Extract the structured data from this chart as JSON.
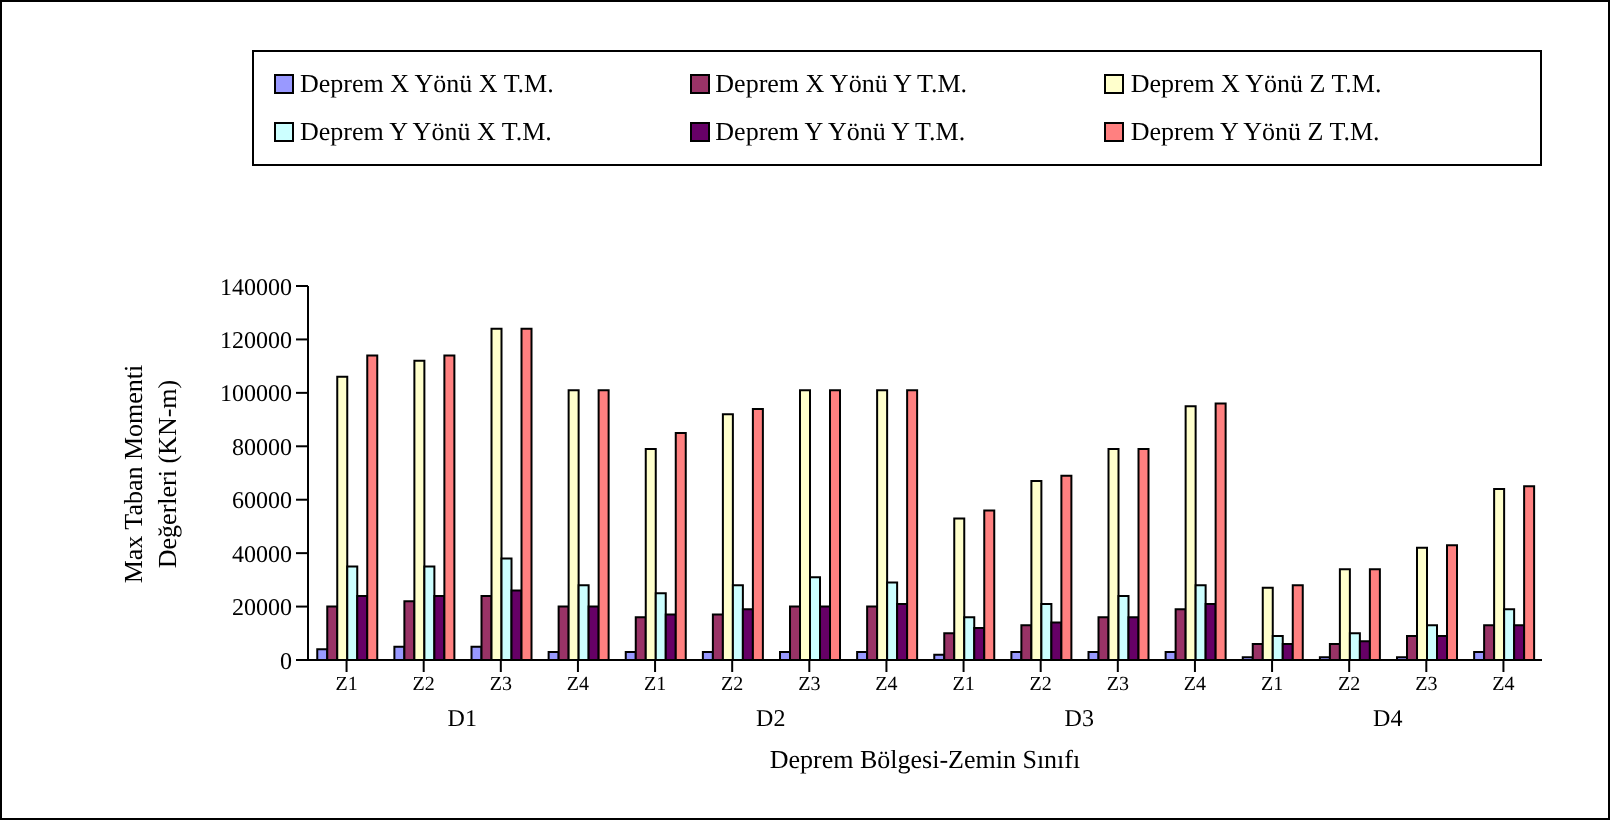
{
  "chart_data": {
    "type": "bar",
    "xlabel": "Deprem Bölgesi-Zemin Sınıfı",
    "ylabel": "Max Taban Momenti Değerleri (KN-m)",
    "categories": [
      "Z1",
      "Z2",
      "Z3",
      "Z4",
      "Z1",
      "Z2",
      "Z3",
      "Z4",
      "Z1",
      "Z2",
      "Z3",
      "Z4",
      "Z1",
      "Z2",
      "Z3",
      "Z4"
    ],
    "annotations": [
      "D1",
      "D2",
      "D3",
      "D4"
    ],
    "series": [
      {
        "name": "Deprem X Yönü X T.M.",
        "color": "#9999ff",
        "values": [
          4000,
          5000,
          5000,
          3000,
          3000,
          3000,
          3000,
          3000,
          2000,
          3000,
          3000,
          3000,
          1000,
          1000,
          1000,
          3000
        ]
      },
      {
        "name": "Deprem X Yönü Y T.M.",
        "color": "#993366",
        "values": [
          20000,
          22000,
          24000,
          20000,
          16000,
          17000,
          20000,
          20000,
          10000,
          13000,
          16000,
          19000,
          6000,
          6000,
          9000,
          13000
        ]
      },
      {
        "name": "Deprem X Yönü Z T.M.",
        "color": "#ffffcc",
        "values": [
          106000,
          112000,
          124000,
          101000,
          79000,
          92000,
          101000,
          101000,
          53000,
          67000,
          79000,
          95000,
          27000,
          34000,
          42000,
          64000
        ]
      },
      {
        "name": "Deprem Y Yönü X T.M.",
        "color": "#ccffff",
        "values": [
          35000,
          35000,
          38000,
          28000,
          25000,
          28000,
          31000,
          29000,
          16000,
          21000,
          24000,
          28000,
          9000,
          10000,
          13000,
          19000
        ]
      },
      {
        "name": "Deprem Y Yönü Y T.M.",
        "color": "#660066",
        "values": [
          24000,
          24000,
          26000,
          20000,
          17000,
          19000,
          20000,
          21000,
          12000,
          14000,
          16000,
          21000,
          6000,
          7000,
          9000,
          13000
        ]
      },
      {
        "name": "Deprem Y Yönü Z T.M.",
        "color": "#ff8080",
        "values": [
          114000,
          114000,
          124000,
          101000,
          85000,
          94000,
          101000,
          101000,
          56000,
          69000,
          79000,
          96000,
          28000,
          34000,
          43000,
          65000
        ]
      }
    ],
    "ylim": [
      0,
      140000
    ],
    "yticks": [
      0,
      20000,
      40000,
      60000,
      80000,
      100000,
      120000,
      140000
    ],
    "grid": false,
    "legend": "top"
  }
}
